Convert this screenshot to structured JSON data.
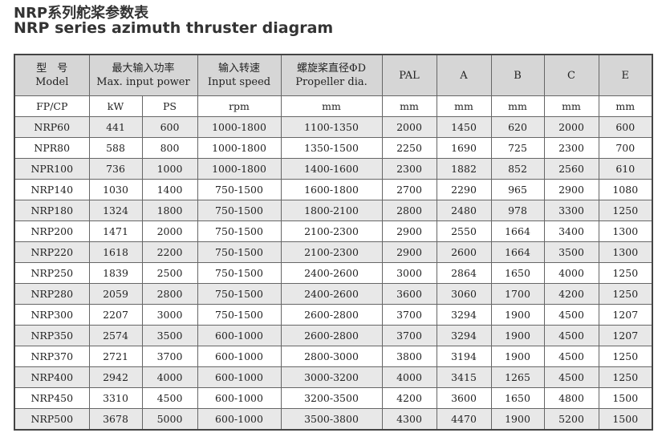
{
  "title_cn": "NRP系列舵桨参数表",
  "title_en": "NRP series azimuth thruster diagram",
  "headers": [
    {
      "cn": "型　号",
      "en": "Model"
    },
    {
      "cn": "最大输入功率",
      "en": "Max. input  power"
    },
    {
      "cn": "输入转速",
      "en": "Input speed"
    },
    {
      "cn": "螺旋桨直径ΦD",
      "en": "Propeller dia."
    },
    {
      "en": "PAL"
    },
    {
      "en": "A"
    },
    {
      "en": "B"
    },
    {
      "en": "C"
    },
    {
      "en": "E"
    }
  ],
  "units": [
    "FP/CP",
    "kW",
    "PS",
    "rpm",
    "mm",
    "mm",
    "mm",
    "mm",
    "mm",
    "mm"
  ],
  "rows": [
    [
      "NRP60",
      "441",
      "600",
      "1000-1800",
      "1100-1350",
      "2000",
      "1450",
      "620",
      "2000",
      "600"
    ],
    [
      "NPR80",
      "588",
      "800",
      "1000-1800",
      "1350-1500",
      "2250",
      "1690",
      "725",
      "2300",
      "700"
    ],
    [
      "NPR100",
      "736",
      "1000",
      "1000-1800",
      "1400-1600",
      "2300",
      "1882",
      "852",
      "2560",
      "610"
    ],
    [
      "NRP140",
      "1030",
      "1400",
      "750-1500",
      "1600-1800",
      "2700",
      "2290",
      "965",
      "2900",
      "1080"
    ],
    [
      "NRP180",
      "1324",
      "1800",
      "750-1500",
      "1800-2100",
      "2800",
      "2480",
      "978",
      "3300",
      "1250"
    ],
    [
      "NRP200",
      "1471",
      "2000",
      "750-1500",
      "2100-2300",
      "2900",
      "2550",
      "1664",
      "3400",
      "1300"
    ],
    [
      "NRP220",
      "1618",
      "2200",
      "750-1500",
      "2100-2300",
      "2900",
      "2600",
      "1664",
      "3500",
      "1300"
    ],
    [
      "NRP250",
      "1839",
      "2500",
      "750-1500",
      "2400-2600",
      "3000",
      "2864",
      "1650",
      "4000",
      "1250"
    ],
    [
      "NRP280",
      "2059",
      "2800",
      "750-1500",
      "2400-2600",
      "3600",
      "3060",
      "1700",
      "4200",
      "1250"
    ],
    [
      "NRP300",
      "2207",
      "3000",
      "750-1500",
      "2600-2800",
      "3700",
      "3294",
      "1900",
      "4500",
      "1207"
    ],
    [
      "NRP350",
      "2574",
      "3500",
      "600-1000",
      "2600-2800",
      "3700",
      "3294",
      "1900",
      "4500",
      "1207"
    ],
    [
      "NRP370",
      "2721",
      "3700",
      "600-1000",
      "2800-3000",
      "3800",
      "3194",
      "1900",
      "4500",
      "1250"
    ],
    [
      "NRP400",
      "2942",
      "4000",
      "600-1000",
      "3000-3200",
      "4000",
      "3415",
      "1265",
      "4500",
      "1250"
    ],
    [
      "NRP450",
      "3310",
      "4500",
      "600-1000",
      "3200-3500",
      "4200",
      "3600",
      "1650",
      "4800",
      "1500"
    ],
    [
      "NRP500",
      "3678",
      "5000",
      "600-1000",
      "3500-3800",
      "4300",
      "4470",
      "1900",
      "5200",
      "1500"
    ]
  ]
}
